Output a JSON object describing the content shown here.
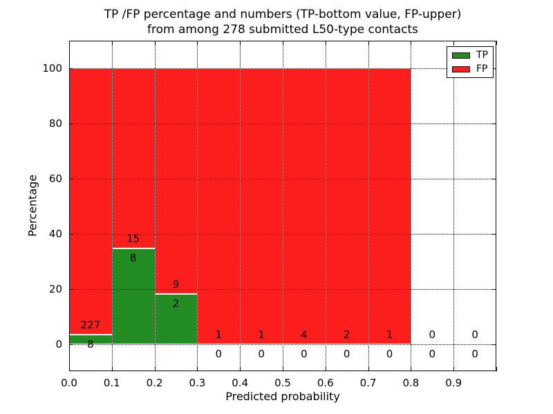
{
  "title": {
    "line1": "TP /FP percentage and numbers (TP-bottom value, FP-upper)",
    "line2": "from among 278 submitted L50-type contacts"
  },
  "axes": {
    "xlabel": "Predicted probability",
    "ylabel": "Percentage",
    "xticks": [
      "0.0",
      "0.1",
      "0.2",
      "0.3",
      "0.4",
      "0.5",
      "0.6",
      "0.7",
      "0.8",
      "0.9"
    ],
    "yticks": [
      "0",
      "20",
      "40",
      "60",
      "80",
      "100"
    ]
  },
  "legend": [
    {
      "label": "TP",
      "color": "#228b22"
    },
    {
      "label": "FP",
      "color": "#fc1d1d"
    }
  ],
  "chart_data": {
    "type": "bar",
    "stacked": true,
    "title": "TP /FP percentage and numbers (TP-bottom value, FP-upper) from among 278 submitted L50-type contacts",
    "xlabel": "Predicted probability",
    "ylabel": "Percentage",
    "total_contacts": 278,
    "xlim": [
      0.0,
      1.0
    ],
    "ylim": [
      -10,
      110
    ],
    "grid": true,
    "legend_position": "upper right",
    "colors": {
      "tp": "#228b22",
      "fp": "#fc1d1d"
    },
    "bin_edges": [
      0.0,
      0.1,
      0.2,
      0.3,
      0.4,
      0.5,
      0.6,
      0.7,
      0.8,
      0.9,
      1.0
    ],
    "bins": [
      {
        "range": [
          0.0,
          0.1
        ],
        "tp": 8,
        "fp": 227,
        "tp_pct": 3.4,
        "fp_pct": 96.6
      },
      {
        "range": [
          0.1,
          0.2
        ],
        "tp": 8,
        "fp": 15,
        "tp_pct": 34.78,
        "fp_pct": 65.22
      },
      {
        "range": [
          0.2,
          0.3
        ],
        "tp": 2,
        "fp": 9,
        "tp_pct": 18.18,
        "fp_pct": 81.82
      },
      {
        "range": [
          0.3,
          0.4
        ],
        "tp": 0,
        "fp": 1,
        "tp_pct": 0,
        "fp_pct": 100
      },
      {
        "range": [
          0.4,
          0.5
        ],
        "tp": 0,
        "fp": 1,
        "tp_pct": 0,
        "fp_pct": 100
      },
      {
        "range": [
          0.5,
          0.6
        ],
        "tp": 0,
        "fp": 4,
        "tp_pct": 0,
        "fp_pct": 100
      },
      {
        "range": [
          0.6,
          0.7
        ],
        "tp": 0,
        "fp": 2,
        "tp_pct": 0,
        "fp_pct": 100
      },
      {
        "range": [
          0.7,
          0.8
        ],
        "tp": 0,
        "fp": 1,
        "tp_pct": 0,
        "fp_pct": 100
      },
      {
        "range": [
          0.8,
          0.9
        ],
        "tp": 0,
        "fp": 0,
        "tp_pct": 0,
        "fp_pct": 0
      },
      {
        "range": [
          0.9,
          1.0
        ],
        "tp": 0,
        "fp": 0,
        "tp_pct": 0,
        "fp_pct": 0
      }
    ]
  }
}
